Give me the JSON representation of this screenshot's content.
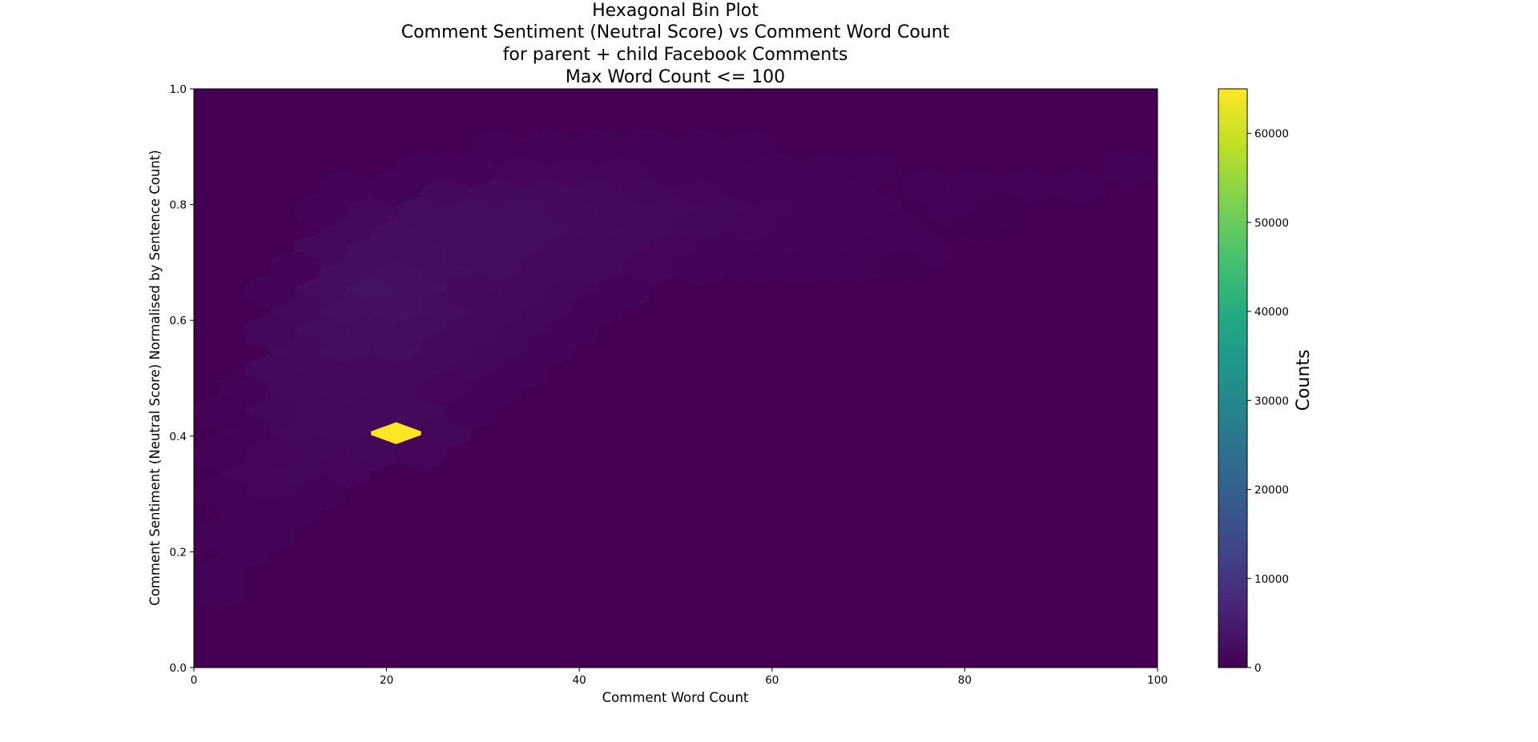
{
  "chart_data": {
    "type": "heatmap",
    "subtype": "hexbin",
    "title_lines": [
      "Hexagonal Bin Plot",
      "Comment Sentiment (Neutral Score) vs Comment Word Count",
      "for parent + child Facebook Comments",
      "Max Word Count <= 100"
    ],
    "xlabel": "Comment Word Count",
    "ylabel": "Comment Sentiment (Neutral Score) Normalised by Sentence Count)",
    "xlim": [
      0,
      100
    ],
    "ylim": [
      0,
      1
    ],
    "xticks": [
      "0",
      "20",
      "40",
      "60",
      "80",
      "100"
    ],
    "yticks": [
      "0.0",
      "0.2",
      "0.4",
      "0.6",
      "0.8",
      "1.0"
    ],
    "grid": false,
    "colormap": "viridis",
    "background_color": "#440154",
    "colorbar": {
      "label": "Counts",
      "range": [
        0,
        65000
      ],
      "ticks": [
        "0",
        "10000",
        "20000",
        "30000",
        "40000",
        "50000",
        "60000"
      ]
    },
    "bins": [
      {
        "x": 21,
        "y": 0.4,
        "count": 65000
      },
      {
        "x": 18.4,
        "y": 0.65,
        "count": 3000
      },
      {
        "x": 21,
        "y": 0.69,
        "count": 2600
      },
      {
        "x": 23.6,
        "y": 0.65,
        "count": 2600
      },
      {
        "x": 21,
        "y": 0.62,
        "count": 2600
      },
      {
        "x": 15.7,
        "y": 0.62,
        "count": 2500
      },
      {
        "x": 15.7,
        "y": 0.69,
        "count": 2300
      },
      {
        "x": 18.4,
        "y": 0.72,
        "count": 2300
      },
      {
        "x": 23.6,
        "y": 0.72,
        "count": 2300
      },
      {
        "x": 26.2,
        "y": 0.69,
        "count": 2200
      },
      {
        "x": 26.2,
        "y": 0.62,
        "count": 2100
      },
      {
        "x": 18.4,
        "y": 0.58,
        "count": 2200
      },
      {
        "x": 21,
        "y": 0.55,
        "count": 2100
      },
      {
        "x": 15.7,
        "y": 0.55,
        "count": 2100
      },
      {
        "x": 13.1,
        "y": 0.58,
        "count": 2000
      },
      {
        "x": 13.1,
        "y": 0.65,
        "count": 2000
      },
      {
        "x": 21,
        "y": 0.76,
        "count": 2100
      },
      {
        "x": 26.2,
        "y": 0.76,
        "count": 2000
      },
      {
        "x": 28.8,
        "y": 0.72,
        "count": 2000
      },
      {
        "x": 31.4,
        "y": 0.76,
        "count": 2000
      },
      {
        "x": 31.4,
        "y": 0.69,
        "count": 1900
      },
      {
        "x": 28.8,
        "y": 0.79,
        "count": 1900
      },
      {
        "x": 34.1,
        "y": 0.79,
        "count": 1900
      },
      {
        "x": 34.1,
        "y": 0.72,
        "count": 1800
      },
      {
        "x": 36.7,
        "y": 0.76,
        "count": 1800
      },
      {
        "x": 39.3,
        "y": 0.79,
        "count": 1700
      },
      {
        "x": 23.6,
        "y": 0.79,
        "count": 1800
      },
      {
        "x": 31.4,
        "y": 0.83,
        "count": 1700
      },
      {
        "x": 36.7,
        "y": 0.83,
        "count": 1600
      },
      {
        "x": 41.9,
        "y": 0.76,
        "count": 1600
      },
      {
        "x": 44.6,
        "y": 0.79,
        "count": 1500
      },
      {
        "x": 47.2,
        "y": 0.76,
        "count": 1400
      },
      {
        "x": 49.8,
        "y": 0.79,
        "count": 1300
      },
      {
        "x": 52.5,
        "y": 0.76,
        "count": 1200
      },
      {
        "x": 26.2,
        "y": 0.83,
        "count": 1500
      },
      {
        "x": 41.9,
        "y": 0.83,
        "count": 1300
      },
      {
        "x": 23.6,
        "y": 0.58,
        "count": 1800
      },
      {
        "x": 28.8,
        "y": 0.65,
        "count": 1700
      },
      {
        "x": 10.5,
        "y": 0.55,
        "count": 1600
      },
      {
        "x": 10.5,
        "y": 0.62,
        "count": 1500
      },
      {
        "x": 13.1,
        "y": 0.51,
        "count": 1700
      },
      {
        "x": 18.4,
        "y": 0.51,
        "count": 1700
      },
      {
        "x": 15.7,
        "y": 0.48,
        "count": 1600
      },
      {
        "x": 10.5,
        "y": 0.48,
        "count": 1400
      },
      {
        "x": 7.9,
        "y": 0.51,
        "count": 1300
      },
      {
        "x": 7.9,
        "y": 0.58,
        "count": 1200
      },
      {
        "x": 13.1,
        "y": 0.72,
        "count": 1400
      },
      {
        "x": 15.7,
        "y": 0.76,
        "count": 1300
      },
      {
        "x": 18.4,
        "y": 0.79,
        "count": 1300
      },
      {
        "x": 13.1,
        "y": 0.44,
        "count": 1500
      },
      {
        "x": 18.4,
        "y": 0.44,
        "count": 1500
      },
      {
        "x": 23.6,
        "y": 0.44,
        "count": 1400
      },
      {
        "x": 10.5,
        "y": 0.41,
        "count": 1300
      },
      {
        "x": 15.7,
        "y": 0.41,
        "count": 1400
      },
      {
        "x": 26.2,
        "y": 0.41,
        "count": 1200
      },
      {
        "x": 7.9,
        "y": 0.44,
        "count": 1100
      },
      {
        "x": 13.1,
        "y": 0.37,
        "count": 1200
      },
      {
        "x": 18.4,
        "y": 0.37,
        "count": 1200
      },
      {
        "x": 23.6,
        "y": 0.37,
        "count": 1000
      },
      {
        "x": 10.5,
        "y": 0.34,
        "count": 1100
      },
      {
        "x": 15.7,
        "y": 0.34,
        "count": 1000
      },
      {
        "x": 7.9,
        "y": 0.37,
        "count": 1000
      },
      {
        "x": 5.2,
        "y": 0.34,
        "count": 900
      },
      {
        "x": 7.9,
        "y": 0.3,
        "count": 900
      },
      {
        "x": 13.1,
        "y": 0.3,
        "count": 800
      },
      {
        "x": 10.5,
        "y": 0.27,
        "count": 700
      },
      {
        "x": 5.2,
        "y": 0.27,
        "count": 700
      },
      {
        "x": 2.6,
        "y": 0.23,
        "count": 600
      },
      {
        "x": 7.9,
        "y": 0.23,
        "count": 600
      },
      {
        "x": 5.2,
        "y": 0.2,
        "count": 500
      },
      {
        "x": 2.6,
        "y": 0.16,
        "count": 700
      },
      {
        "x": 2.6,
        "y": 0.13,
        "count": 600
      },
      {
        "x": 23.6,
        "y": 0.51,
        "count": 1500
      },
      {
        "x": 28.8,
        "y": 0.51,
        "count": 1200
      },
      {
        "x": 26.2,
        "y": 0.55,
        "count": 1500
      },
      {
        "x": 31.4,
        "y": 0.55,
        "count": 1200
      },
      {
        "x": 28.8,
        "y": 0.58,
        "count": 1400
      },
      {
        "x": 34.1,
        "y": 0.58,
        "count": 1200
      },
      {
        "x": 31.4,
        "y": 0.62,
        "count": 1400
      },
      {
        "x": 36.7,
        "y": 0.62,
        "count": 1200
      },
      {
        "x": 34.1,
        "y": 0.65,
        "count": 1400
      },
      {
        "x": 39.3,
        "y": 0.65,
        "count": 1200
      },
      {
        "x": 36.7,
        "y": 0.69,
        "count": 1500
      },
      {
        "x": 41.9,
        "y": 0.69,
        "count": 1300
      },
      {
        "x": 39.3,
        "y": 0.72,
        "count": 1500
      },
      {
        "x": 44.6,
        "y": 0.72,
        "count": 1300
      },
      {
        "x": 47.2,
        "y": 0.69,
        "count": 1000
      },
      {
        "x": 49.8,
        "y": 0.72,
        "count": 1000
      },
      {
        "x": 55.1,
        "y": 0.79,
        "count": 1100
      },
      {
        "x": 57.7,
        "y": 0.76,
        "count": 900
      },
      {
        "x": 60.3,
        "y": 0.79,
        "count": 900
      },
      {
        "x": 62.9,
        "y": 0.76,
        "count": 800
      },
      {
        "x": 65.6,
        "y": 0.79,
        "count": 800
      },
      {
        "x": 47.2,
        "y": 0.83,
        "count": 1100
      },
      {
        "x": 52.5,
        "y": 0.83,
        "count": 1000
      },
      {
        "x": 57.7,
        "y": 0.83,
        "count": 800
      },
      {
        "x": 62.9,
        "y": 0.83,
        "count": 700
      },
      {
        "x": 39.3,
        "y": 0.86,
        "count": 900
      },
      {
        "x": 44.6,
        "y": 0.86,
        "count": 900
      },
      {
        "x": 49.8,
        "y": 0.86,
        "count": 800
      },
      {
        "x": 55.1,
        "y": 0.86,
        "count": 700
      },
      {
        "x": 34.1,
        "y": 0.86,
        "count": 900
      },
      {
        "x": 28.8,
        "y": 0.86,
        "count": 800
      },
      {
        "x": 68.2,
        "y": 0.83,
        "count": 500
      },
      {
        "x": 70.8,
        "y": 0.79,
        "count": 500
      },
      {
        "x": 73.4,
        "y": 0.76,
        "count": 400
      },
      {
        "x": 68.2,
        "y": 0.76,
        "count": 600
      },
      {
        "x": 65.6,
        "y": 0.72,
        "count": 500
      },
      {
        "x": 60.3,
        "y": 0.72,
        "count": 600
      },
      {
        "x": 55.1,
        "y": 0.72,
        "count": 700
      },
      {
        "x": 52.5,
        "y": 0.69,
        "count": 600
      },
      {
        "x": 44.6,
        "y": 0.65,
        "count": 700
      },
      {
        "x": 41.9,
        "y": 0.62,
        "count": 600
      },
      {
        "x": 36.7,
        "y": 0.55,
        "count": 700
      },
      {
        "x": 34.1,
        "y": 0.51,
        "count": 600
      },
      {
        "x": 31.4,
        "y": 0.48,
        "count": 600
      },
      {
        "x": 26.2,
        "y": 0.48,
        "count": 900
      },
      {
        "x": 20.9,
        "y": 0.48,
        "count": 1300
      },
      {
        "x": 28.8,
        "y": 0.44,
        "count": 700
      },
      {
        "x": 39.3,
        "y": 0.58,
        "count": 600
      },
      {
        "x": 41.9,
        "y": 0.9,
        "count": 500
      },
      {
        "x": 47.2,
        "y": 0.9,
        "count": 500
      },
      {
        "x": 52.5,
        "y": 0.9,
        "count": 500
      },
      {
        "x": 36.7,
        "y": 0.9,
        "count": 500
      },
      {
        "x": 31.4,
        "y": 0.9,
        "count": 400
      },
      {
        "x": 57.7,
        "y": 0.9,
        "count": 400
      },
      {
        "x": 60.3,
        "y": 0.86,
        "count": 500
      },
      {
        "x": 65.6,
        "y": 0.86,
        "count": 400
      },
      {
        "x": 76.0,
        "y": 0.83,
        "count": 350
      },
      {
        "x": 81.3,
        "y": 0.83,
        "count": 300
      },
      {
        "x": 86.5,
        "y": 0.83,
        "count": 300
      },
      {
        "x": 91.8,
        "y": 0.83,
        "count": 300
      },
      {
        "x": 97.0,
        "y": 0.86,
        "count": 600
      },
      {
        "x": 78.7,
        "y": 0.79,
        "count": 300
      },
      {
        "x": 84.0,
        "y": 0.79,
        "count": 250
      },
      {
        "x": 76.0,
        "y": 0.72,
        "count": 300
      },
      {
        "x": 81.3,
        "y": 0.76,
        "count": 250
      },
      {
        "x": 70.8,
        "y": 0.72,
        "count": 350
      },
      {
        "x": 73.4,
        "y": 0.69,
        "count": 250
      },
      {
        "x": 68.2,
        "y": 0.69,
        "count": 300
      },
      {
        "x": 62.9,
        "y": 0.69,
        "count": 350
      },
      {
        "x": 57.7,
        "y": 0.69,
        "count": 400
      },
      {
        "x": 70.8,
        "y": 0.86,
        "count": 300
      },
      {
        "x": 7.9,
        "y": 0.65,
        "count": 700
      },
      {
        "x": 10.5,
        "y": 0.69,
        "count": 800
      },
      {
        "x": 13.1,
        "y": 0.79,
        "count": 700
      },
      {
        "x": 15.7,
        "y": 0.83,
        "count": 600
      },
      {
        "x": 20.9,
        "y": 0.83,
        "count": 700
      },
      {
        "x": 23.6,
        "y": 0.86,
        "count": 600
      },
      {
        "x": 5.2,
        "y": 0.41,
        "count": 600
      },
      {
        "x": 5.2,
        "y": 0.48,
        "count": 600
      },
      {
        "x": 2.6,
        "y": 0.37,
        "count": 400
      },
      {
        "x": 2.6,
        "y": 0.3,
        "count": 450
      },
      {
        "x": 2.6,
        "y": 0.44,
        "count": 350
      }
    ]
  }
}
